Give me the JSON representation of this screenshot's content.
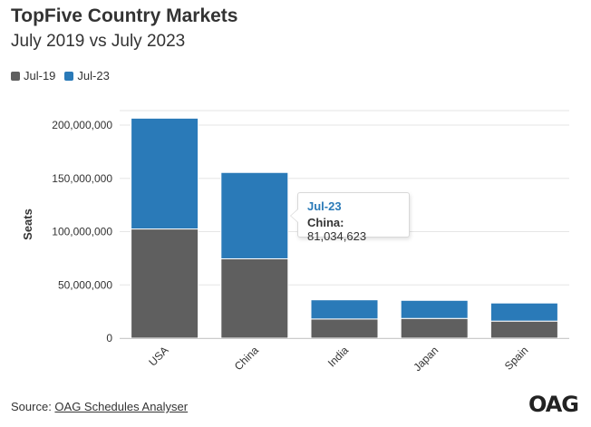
{
  "header": {
    "title": "TopFive Country Markets",
    "subtitle": "July 2019 vs July 2023"
  },
  "legend": {
    "items": [
      {
        "label": "Jul-19",
        "color": "#5f5f5f"
      },
      {
        "label": "Jul-23",
        "color": "#2a7ab8"
      }
    ]
  },
  "tooltip": {
    "series": "Jul-23",
    "category": "China",
    "separator": ":",
    "value": "81,034,623",
    "series_color": "#2a7ab8"
  },
  "footer": {
    "source_prefix": "Source: ",
    "source_link": "OAG Schedules Analyser",
    "logo": "OAG"
  },
  "chart_data": {
    "type": "bar",
    "stacked": true,
    "categories": [
      "USA",
      "China",
      "India",
      "Japan",
      "Spain"
    ],
    "series": [
      {
        "name": "Jul-19",
        "color": "#5f5f5f",
        "values": [
          102500000,
          74500000,
          18000000,
          18500000,
          16000000
        ]
      },
      {
        "name": "Jul-23",
        "color": "#2a7ab8",
        "values": [
          104000000,
          81034623,
          18000000,
          17000000,
          17000000
        ]
      }
    ],
    "ylabel": "Seats",
    "xlabel": "",
    "ylim": [
      0,
      200000000
    ],
    "yticks": [
      0,
      50000000,
      100000000,
      150000000,
      200000000
    ],
    "ytick_labels": [
      "0",
      "50,000,000",
      "100,000,000",
      "150,000,000",
      "200,000,000"
    ],
    "grid": true,
    "legend_position": "top-left"
  }
}
